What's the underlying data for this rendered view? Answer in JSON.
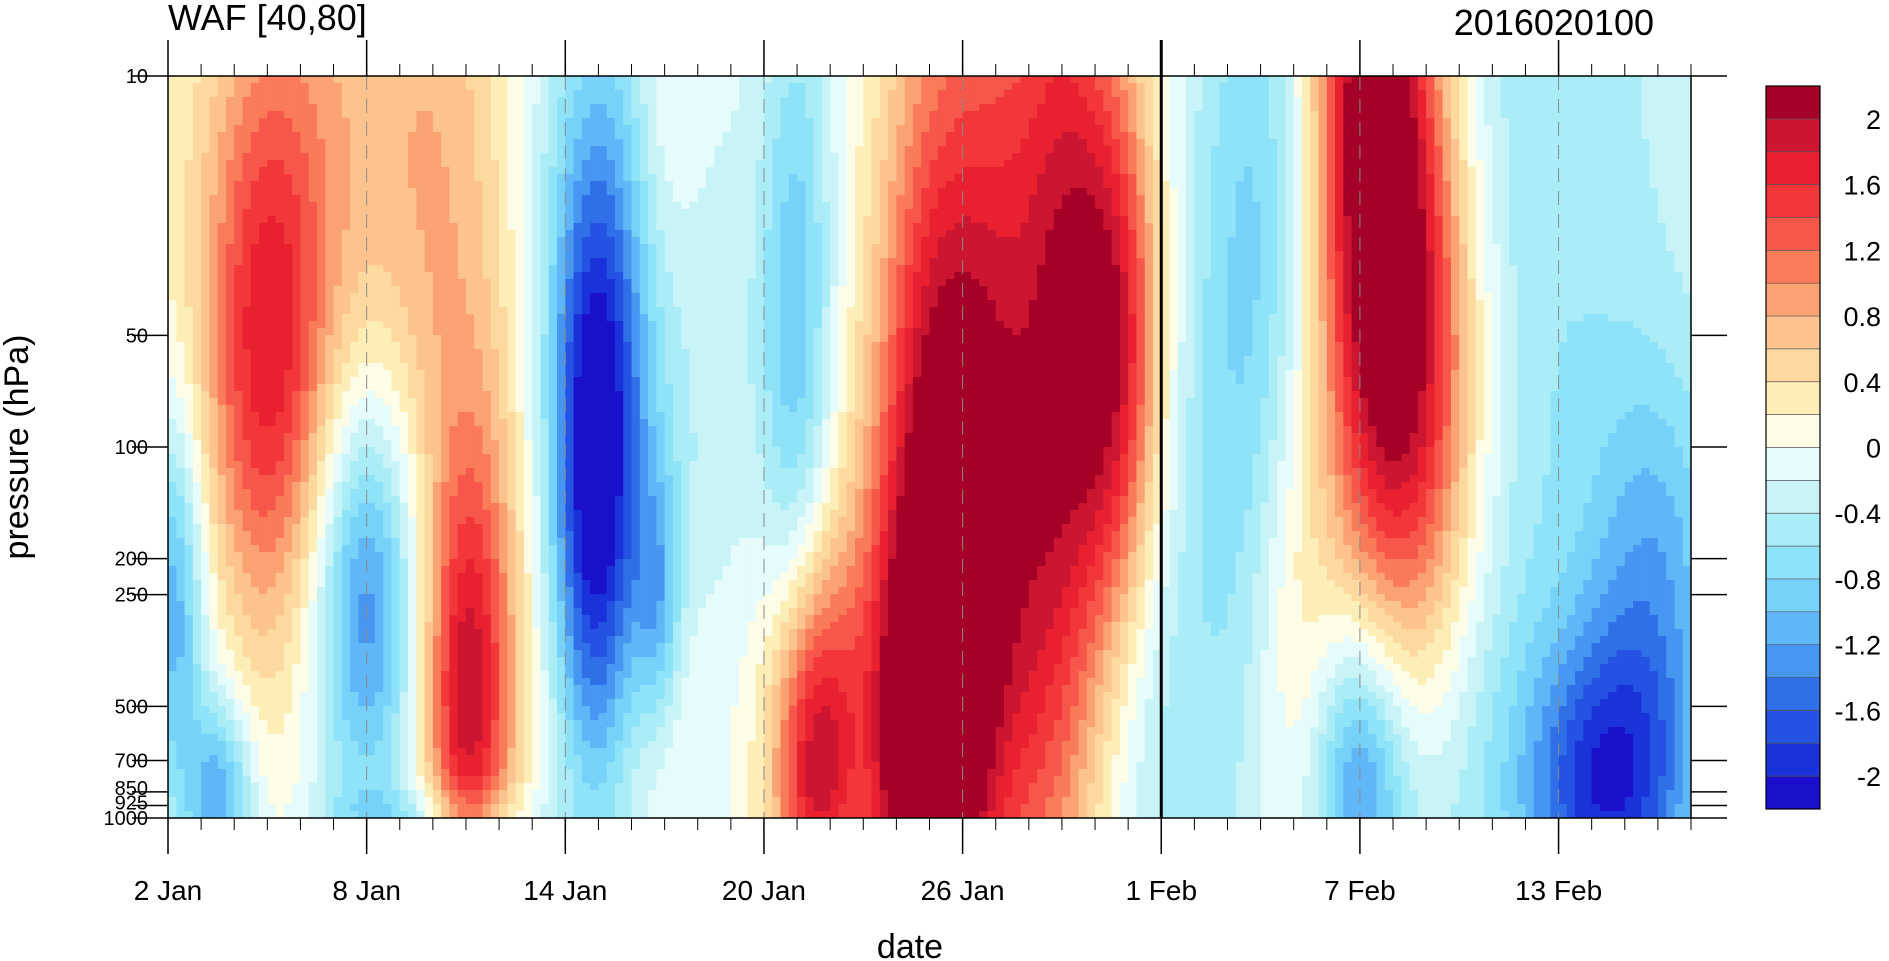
{
  "chart_data": {
    "type": "heatmap",
    "title": "WAF [40,80]",
    "subtitle": "2016020100",
    "xlabel": "date",
    "ylabel": "pressure (hPa)",
    "x_tick_labels": [
      "2 Jan",
      "8 Jan",
      "14 Jan",
      "20 Jan",
      "26 Jan",
      "1 Feb",
      "7 Feb",
      "13 Feb"
    ],
    "x_tick_days": [
      2,
      8,
      14,
      20,
      26,
      32,
      38,
      44
    ],
    "x_range_days": [
      2,
      48
    ],
    "x_minor_step_days": 1,
    "y_scale": "log",
    "y_tick_labels": [
      "10",
      "50",
      "100",
      "200",
      "250",
      "500",
      "700",
      "850",
      "925",
      "1000"
    ],
    "y_tick_values": [
      10,
      50,
      100,
      200,
      250,
      500,
      700,
      850,
      925,
      1000
    ],
    "y_range": [
      1000,
      10
    ],
    "highlight_date_label": "1 Feb",
    "grid": "dashed vertical lines at labeled dates",
    "colorbar": {
      "labels": [
        "2",
        "1.6",
        "1.2",
        "0.8",
        "0.4",
        "0",
        "-0.4",
        "-0.8",
        "-1.2",
        "-1.6",
        "-2"
      ],
      "levels": [
        2.2,
        2.0,
        1.8,
        1.6,
        1.4,
        1.2,
        1.0,
        0.8,
        0.6,
        0.4,
        0.2,
        0.0,
        -0.2,
        -0.4,
        -0.6,
        -0.8,
        -1.0,
        -1.2,
        -1.4,
        -1.6,
        -1.8,
        -2.0
      ],
      "colors": [
        "#a50026",
        "#cc1530",
        "#e8202f",
        "#f2363a",
        "#f7574a",
        "#f97b58",
        "#fba272",
        "#fcc38f",
        "#fdd9a0",
        "#fdeeb7",
        "#fdfce6",
        "#e6fbfc",
        "#c8f4f8",
        "#aaedf7",
        "#8fe3f8",
        "#76d2f9",
        "#5fb7f7",
        "#4796f1",
        "#2f6fe7",
        "#2452e2",
        "#1a32d9",
        "#1a10cc"
      ]
    },
    "features": [
      {
        "t": 5,
        "p": 55,
        "v": 1.3,
        "sx": 1.3,
        "sy": 0.55
      },
      {
        "t": 4.8,
        "p": 140,
        "v": 0.45,
        "sx": 2.2,
        "sy": 1.3
      },
      {
        "t": 8,
        "p": 15,
        "v": 0.5,
        "sx": 2.4,
        "sy": 0.9
      },
      {
        "t": 10.5,
        "p": 30,
        "v": 0.5,
        "sx": 1.5,
        "sy": 0.9
      },
      {
        "t": 8,
        "p": 240,
        "v": -1.3,
        "sx": 1.1,
        "sy": 0.4
      },
      {
        "t": 7,
        "p": 400,
        "v": -0.45,
        "sx": 2.5,
        "sy": 0.6
      },
      {
        "t": 3.6,
        "p": 880,
        "v": -1.1,
        "sx": 0.7,
        "sy": 0.18
      },
      {
        "t": 2.2,
        "p": 240,
        "v": -1.0,
        "sx": 0.6,
        "sy": 0.35
      },
      {
        "t": 2.6,
        "p": 600,
        "v": -0.4,
        "sx": 1.2,
        "sy": 0.5
      },
      {
        "t": 11,
        "p": 520,
        "v": 1.5,
        "sx": 0.9,
        "sy": 0.45
      },
      {
        "t": 11.8,
        "p": 300,
        "v": 0.45,
        "sx": 1.2,
        "sy": 0.6
      },
      {
        "t": 10,
        "p": 980,
        "v": -0.5,
        "sx": 2.5,
        "sy": 0.06
      },
      {
        "t": 14.9,
        "p": 150,
        "v": -1.5,
        "sx": 0.9,
        "sy": 0.55
      },
      {
        "t": 15,
        "p": 60,
        "v": -0.8,
        "sx": 1.2,
        "sy": 0.6
      },
      {
        "t": 15.5,
        "p": 20,
        "v": -0.45,
        "sx": 2.0,
        "sy": 0.8
      },
      {
        "t": 17,
        "p": 12,
        "v": 0.4,
        "sx": 0.8,
        "sy": 0.4
      },
      {
        "t": 16.8,
        "p": 270,
        "v": -0.85,
        "sx": 0.5,
        "sy": 0.25
      },
      {
        "t": 17,
        "p": 530,
        "v": 0.3,
        "sx": 1.0,
        "sy": 0.3
      },
      {
        "t": 19,
        "p": 220,
        "v": -0.3,
        "sx": 2.0,
        "sy": 0.8
      },
      {
        "t": 21,
        "p": 50,
        "v": -0.9,
        "sx": 0.8,
        "sy": 0.7
      },
      {
        "t": 21.5,
        "p": 700,
        "v": 1.5,
        "sx": 0.9,
        "sy": 0.35
      },
      {
        "t": 21.6,
        "p": 520,
        "v": 0.6,
        "sx": 1.8,
        "sy": 0.5
      },
      {
        "t": 25.2,
        "p": 110,
        "v": 1.6,
        "sx": 1.3,
        "sy": 0.9
      },
      {
        "t": 24.9,
        "p": 700,
        "v": 1.8,
        "sx": 0.9,
        "sy": 0.35
      },
      {
        "t": 26,
        "p": 400,
        "v": 0.9,
        "sx": 2.2,
        "sy": 0.6
      },
      {
        "t": 27,
        "p": 20,
        "v": 0.5,
        "sx": 1.0,
        "sy": 0.8
      },
      {
        "t": 29,
        "p": 30,
        "v": 1.2,
        "sx": 1.1,
        "sy": 1.0
      },
      {
        "t": 30.7,
        "p": 55,
        "v": 1.6,
        "sx": 1.0,
        "sy": 0.55
      },
      {
        "t": 28,
        "p": 150,
        "v": 0.7,
        "sx": 2.2,
        "sy": 1.0
      },
      {
        "t": 31,
        "p": 550,
        "v": -0.4,
        "sx": 1.4,
        "sy": 0.5
      },
      {
        "t": 33.5,
        "p": 200,
        "v": -0.45,
        "sx": 2.2,
        "sy": 1.0
      },
      {
        "t": 36,
        "p": 280,
        "v": 0.6,
        "sx": 1.0,
        "sy": 0.5
      },
      {
        "t": 35,
        "p": 25,
        "v": -0.6,
        "sx": 1.4,
        "sy": 0.8
      },
      {
        "t": 38.3,
        "p": 12,
        "v": 2.4,
        "sx": 1.3,
        "sy": 0.9
      },
      {
        "t": 39.5,
        "p": 55,
        "v": 1.2,
        "sx": 1.3,
        "sy": 0.7
      },
      {
        "t": 40.5,
        "p": 100,
        "v": 0.8,
        "sx": 1.3,
        "sy": 0.6
      },
      {
        "t": 38,
        "p": 780,
        "v": -1.2,
        "sx": 1.0,
        "sy": 0.3
      },
      {
        "t": 40,
        "p": 500,
        "v": -0.5,
        "sx": 1.8,
        "sy": 0.6
      },
      {
        "t": 45.5,
        "p": 850,
        "v": -1.6,
        "sx": 1.8,
        "sy": 0.3
      },
      {
        "t": 43,
        "p": 30,
        "v": -0.6,
        "sx": 4.0,
        "sy": 1.5
      },
      {
        "t": 47,
        "p": 220,
        "v": -0.8,
        "sx": 1.5,
        "sy": 0.4
      }
    ]
  }
}
